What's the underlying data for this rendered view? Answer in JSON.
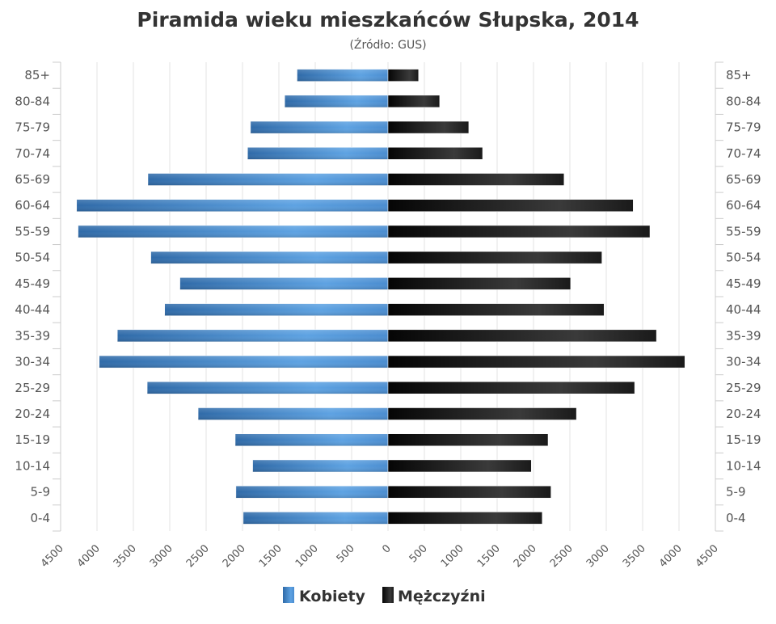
{
  "chart_data": {
    "type": "bar",
    "orientation": "horizontal-pyramid",
    "title": "Piramida wieku mieszkańców Słupska, 2014",
    "subtitle": "(Źródło: GUS)",
    "categories": [
      "85+",
      "80-84",
      "75-79",
      "70-74",
      "65-69",
      "60-64",
      "55-59",
      "50-54",
      "45-49",
      "40-44",
      "35-39",
      "30-34",
      "25-29",
      "20-24",
      "15-19",
      "10-14",
      "5-9",
      "0-4"
    ],
    "series": [
      {
        "name": "Kobiety",
        "side": "left",
        "color": "#4a86c5",
        "values": [
          1250,
          1420,
          1890,
          1930,
          3300,
          4280,
          4260,
          3260,
          2860,
          3070,
          3720,
          3970,
          3310,
          2610,
          2100,
          1860,
          2090,
          1990
        ]
      },
      {
        "name": "Mężczyźni",
        "side": "right",
        "color": "#1a1a1a",
        "values": [
          420,
          710,
          1110,
          1300,
          2420,
          3370,
          3600,
          2940,
          2510,
          2970,
          3690,
          4080,
          3390,
          2590,
          2200,
          1970,
          2240,
          2120
        ]
      }
    ],
    "xticks": [
      "4500",
      "4000",
      "3500",
      "3000",
      "2500",
      "2000",
      "1500",
      "1000",
      "500",
      "0",
      "500",
      "1000",
      "1500",
      "2000",
      "2500",
      "3000",
      "3500",
      "4000",
      "4500"
    ],
    "xlim": [
      -4500,
      4500
    ],
    "grid": true,
    "legend_position": "bottom-center"
  }
}
